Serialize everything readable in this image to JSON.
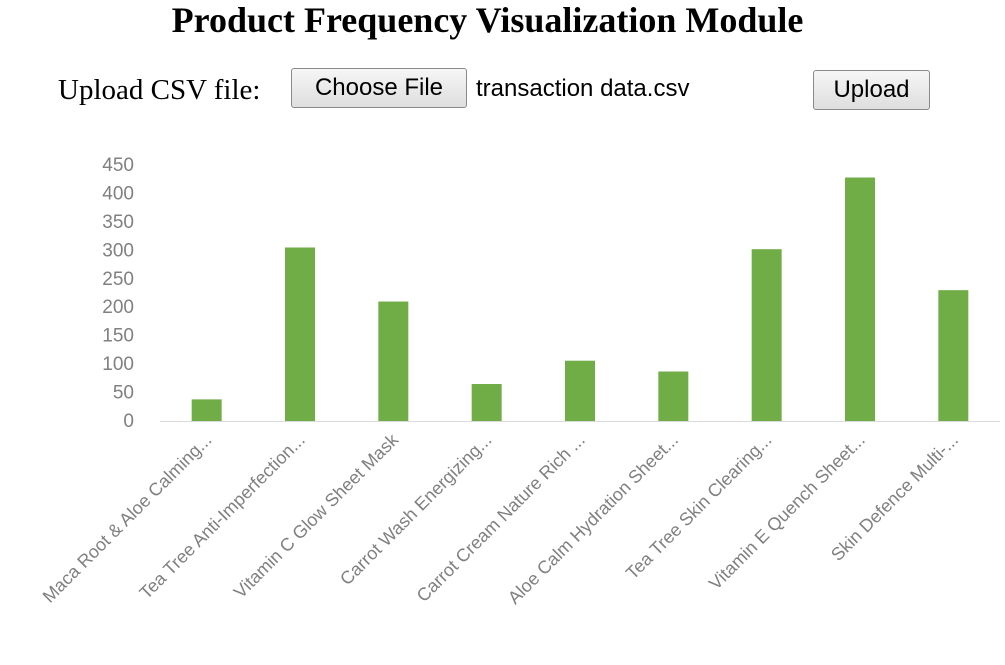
{
  "page": {
    "title": "Product Frequency Visualization Module"
  },
  "upload": {
    "label": "Upload CSV file:",
    "choose_button": "Choose File",
    "file_name": "transaction data.csv",
    "upload_button": "Upload"
  },
  "colors": {
    "bar": "#70ad47",
    "axis_text": "#808080",
    "axis_line": "#d9d9d9"
  },
  "chart_data": {
    "type": "bar",
    "title": "",
    "xlabel": "",
    "ylabel": "",
    "ylim": [
      0,
      450
    ],
    "yticks": [
      0,
      50,
      100,
      150,
      200,
      250,
      300,
      350,
      400,
      450
    ],
    "grid": false,
    "categories": [
      "Maca Root & Aloe Calming...",
      "Tea Tree Anti-Imperfection...",
      "Vitamin C Glow Sheet Mask",
      "Carrot Wash Energizing...",
      "Carrot Cream Nature Rich ...",
      "Aloe Calm Hydration Sheet...",
      "Tea Tree Skin Clearing...",
      "Vitamin E Quench Sheet...",
      "Skin Defence Multi-..."
    ],
    "values": [
      38,
      305,
      210,
      65,
      106,
      87,
      302,
      428,
      230
    ]
  }
}
